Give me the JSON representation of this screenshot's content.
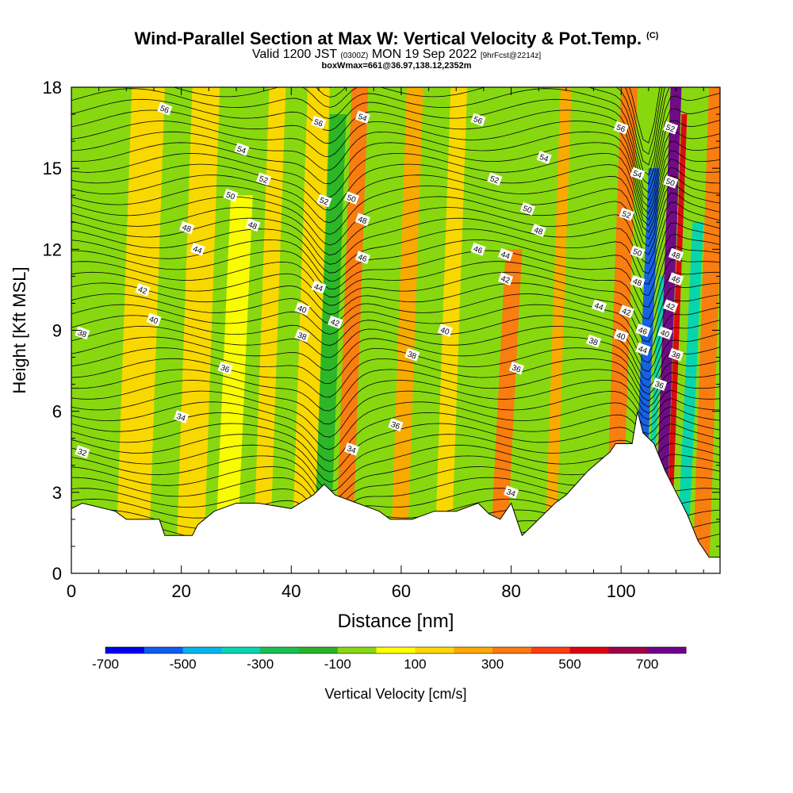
{
  "header": {
    "title": "Wind-Parallel Section at Max W: Vertical Velocity & Pot.Temp.",
    "copyright": "(C)",
    "valid_prefix": "Valid 1200 JST",
    "valid_utc": "(0300Z)",
    "valid_date": "MON 19 Sep 2022",
    "forecast": "[9hrFcst@2214z]",
    "box_info": "boxWmax=661@36.97,138.12,2352m"
  },
  "chart_data": {
    "type": "heatmap",
    "xlabel": "Distance [nm]",
    "ylabel": "Height [Kft MSL]",
    "xlim": [
      0,
      118
    ],
    "ylim": [
      0,
      18
    ],
    "x_ticks": [
      0,
      20,
      40,
      60,
      80,
      100
    ],
    "y_ticks": [
      0,
      3,
      6,
      9,
      12,
      15,
      18
    ],
    "colorbar": {
      "label": "Vertical Velocity [cm/s]",
      "tick_labels": [
        "-700",
        "-500",
        "-300",
        "-100",
        "100",
        "300",
        "500",
        "700"
      ],
      "colors": [
        "#0000ee",
        "#0f5cf0",
        "#00b5f0",
        "#00d6b5",
        "#18c050",
        "#28b428",
        "#88d810",
        "#ffff00",
        "#ffd800",
        "#ffa800",
        "#ff7810",
        "#ff3c10",
        "#e00010",
        "#a00048",
        "#70008c"
      ]
    },
    "terrain_kft": [
      [
        0,
        2.4
      ],
      [
        2,
        2.6
      ],
      [
        8,
        2.3
      ],
      [
        10,
        2.0
      ],
      [
        16,
        2.0
      ],
      [
        17,
        1.4
      ],
      [
        22,
        1.4
      ],
      [
        23,
        1.8
      ],
      [
        26,
        2.3
      ],
      [
        30,
        2.6
      ],
      [
        34,
        2.6
      ],
      [
        40,
        2.4
      ],
      [
        44,
        2.9
      ],
      [
        46,
        3.3
      ],
      [
        48,
        2.9
      ],
      [
        52,
        2.6
      ],
      [
        56,
        2.3
      ],
      [
        58,
        2.0
      ],
      [
        62,
        2.0
      ],
      [
        66,
        2.3
      ],
      [
        70,
        2.3
      ],
      [
        74,
        2.6
      ],
      [
        76,
        2.2
      ],
      [
        78,
        2.0
      ],
      [
        80,
        2.6
      ],
      [
        82,
        1.4
      ],
      [
        85,
        2.0
      ],
      [
        88,
        2.6
      ],
      [
        90,
        2.9
      ],
      [
        94,
        3.8
      ],
      [
        98,
        4.5
      ],
      [
        99,
        4.8
      ],
      [
        102,
        4.8
      ],
      [
        103,
        6.0
      ],
      [
        104,
        5.2
      ],
      [
        106,
        4.8
      ],
      [
        108,
        3.8
      ],
      [
        110,
        3.0
      ],
      [
        112,
        2.2
      ],
      [
        114,
        1.2
      ],
      [
        116,
        0.6
      ],
      [
        118,
        0.6
      ]
    ],
    "velocity_bands_cm_s": [
      {
        "x": [
          8,
          14
        ],
        "ytop": 18,
        "w": 50
      },
      {
        "x": [
          19,
          24
        ],
        "ytop": 18,
        "w": 120
      },
      {
        "x": [
          26,
          30
        ],
        "ytop": 14,
        "w": -50
      },
      {
        "x": [
          33,
          36
        ],
        "ytop": 18,
        "w": 120
      },
      {
        "x": [
          40,
          44
        ],
        "ytop": 18,
        "w": 140
      },
      {
        "x": [
          44,
          47
        ],
        "ytop": 17,
        "w": -220
      },
      {
        "x": [
          48,
          51
        ],
        "ytop": 18,
        "w": 300
      },
      {
        "x": [
          52,
          55
        ],
        "ytop": 18,
        "w": -150
      },
      {
        "x": [
          58,
          61
        ],
        "ytop": 18,
        "w": 150
      },
      {
        "x": [
          62,
          64
        ],
        "ytop": 17,
        "w": -150
      },
      {
        "x": [
          66,
          69
        ],
        "ytop": 18,
        "w": 130
      },
      {
        "x": [
          76,
          79
        ],
        "ytop": 12,
        "w": 250
      },
      {
        "x": [
          86,
          88
        ],
        "ytop": 18,
        "w": 200
      },
      {
        "x": [
          89,
          92
        ],
        "ytop": 18,
        "w": -150
      },
      {
        "x": [
          97,
          100
        ],
        "ytop": 18,
        "w": 300
      },
      {
        "x": [
          102,
          104
        ],
        "ytop": 15,
        "w": -650
      },
      {
        "x": [
          104,
          105
        ],
        "ytop": 11,
        "w": -400
      },
      {
        "x": [
          106,
          108
        ],
        "ytop": 18,
        "w": 680
      },
      {
        "x": [
          108,
          109
        ],
        "ytop": 17,
        "w": 500
      },
      {
        "x": [
          110,
          112
        ],
        "ytop": 13,
        "w": -400
      },
      {
        "x": [
          113,
          116
        ],
        "ytop": 18,
        "w": 250
      }
    ],
    "theta_contour_labels": [
      {
        "text": "56",
        "x": 17,
        "y": 17.2
      },
      {
        "text": "54",
        "x": 31,
        "y": 15.7
      },
      {
        "text": "52",
        "x": 35,
        "y": 14.6
      },
      {
        "text": "50",
        "x": 29,
        "y": 14.0
      },
      {
        "text": "48",
        "x": 21,
        "y": 12.8
      },
      {
        "text": "48",
        "x": 33,
        "y": 12.9
      },
      {
        "text": "44",
        "x": 23,
        "y": 12.0
      },
      {
        "text": "42",
        "x": 13,
        "y": 10.5
      },
      {
        "text": "40",
        "x": 15,
        "y": 9.4
      },
      {
        "text": "38",
        "x": 2,
        "y": 8.9
      },
      {
        "text": "36",
        "x": 28,
        "y": 7.6
      },
      {
        "text": "34",
        "x": 20,
        "y": 5.8
      },
      {
        "text": "32",
        "x": 2,
        "y": 4.5
      },
      {
        "text": "56",
        "x": 45,
        "y": 16.7
      },
      {
        "text": "54",
        "x": 53,
        "y": 16.9
      },
      {
        "text": "52",
        "x": 46,
        "y": 13.8
      },
      {
        "text": "50",
        "x": 51,
        "y": 13.9
      },
      {
        "text": "48",
        "x": 53,
        "y": 13.1
      },
      {
        "text": "46",
        "x": 53,
        "y": 11.7
      },
      {
        "text": "44",
        "x": 45,
        "y": 10.6
      },
      {
        "text": "40",
        "x": 42,
        "y": 9.8
      },
      {
        "text": "42",
        "x": 48,
        "y": 9.3
      },
      {
        "text": "38",
        "x": 42,
        "y": 8.8
      },
      {
        "text": "38",
        "x": 62,
        "y": 8.1
      },
      {
        "text": "40",
        "x": 68,
        "y": 9.0
      },
      {
        "text": "36",
        "x": 59,
        "y": 5.5
      },
      {
        "text": "34",
        "x": 51,
        "y": 4.6
      },
      {
        "text": "56",
        "x": 74,
        "y": 16.8
      },
      {
        "text": "52",
        "x": 77,
        "y": 14.6
      },
      {
        "text": "50",
        "x": 83,
        "y": 13.5
      },
      {
        "text": "48",
        "x": 85,
        "y": 12.7
      },
      {
        "text": "46",
        "x": 74,
        "y": 12.0
      },
      {
        "text": "44",
        "x": 79,
        "y": 11.8
      },
      {
        "text": "42",
        "x": 79,
        "y": 10.9
      },
      {
        "text": "36",
        "x": 81,
        "y": 7.6
      },
      {
        "text": "34",
        "x": 80,
        "y": 3.0
      },
      {
        "text": "54",
        "x": 86,
        "y": 15.4
      },
      {
        "text": "44",
        "x": 96,
        "y": 9.9
      },
      {
        "text": "38",
        "x": 95,
        "y": 8.6
      },
      {
        "text": "40",
        "x": 100,
        "y": 8.8
      },
      {
        "text": "42",
        "x": 101,
        "y": 9.7
      },
      {
        "text": "56",
        "x": 100,
        "y": 16.5
      },
      {
        "text": "54",
        "x": 103,
        "y": 14.8
      },
      {
        "text": "52",
        "x": 101,
        "y": 13.3
      },
      {
        "text": "50",
        "x": 103,
        "y": 11.9
      },
      {
        "text": "48",
        "x": 103,
        "y": 10.8
      },
      {
        "text": "46",
        "x": 104,
        "y": 9.0
      },
      {
        "text": "44",
        "x": 104,
        "y": 8.3
      },
      {
        "text": "52",
        "x": 109,
        "y": 16.5
      },
      {
        "text": "50",
        "x": 109,
        "y": 14.5
      },
      {
        "text": "48",
        "x": 110,
        "y": 11.8
      },
      {
        "text": "46",
        "x": 110,
        "y": 10.9
      },
      {
        "text": "42",
        "x": 109,
        "y": 9.9
      },
      {
        "text": "40",
        "x": 108,
        "y": 8.9
      },
      {
        "text": "38",
        "x": 110,
        "y": 8.1
      },
      {
        "text": "36",
        "x": 107,
        "y": 7.0
      }
    ]
  }
}
